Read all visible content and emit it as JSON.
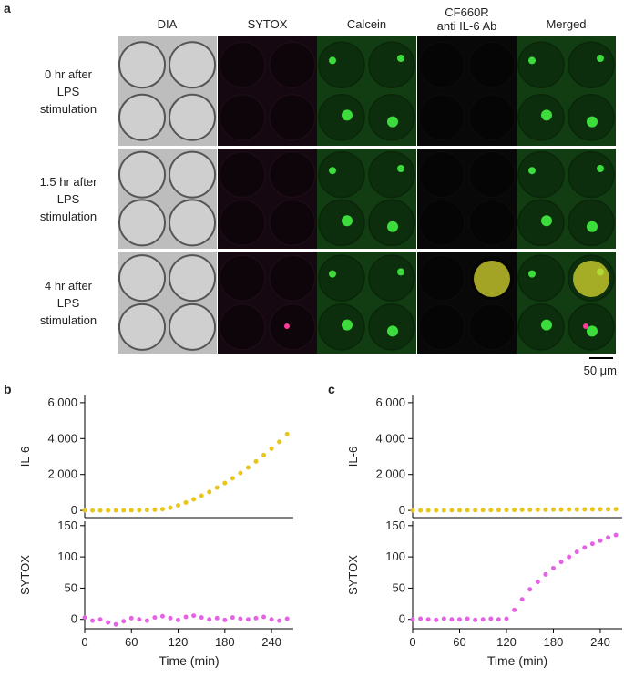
{
  "panels": [
    "a",
    "b",
    "c"
  ],
  "panel_a": {
    "columns": [
      "DIA",
      "SYTOX",
      "Calcein",
      [
        "CF660R",
        "anti IL-6 Ab"
      ],
      "Merged"
    ],
    "rows": [
      [
        "0 hr after",
        "LPS",
        "stimulation"
      ],
      [
        "1.5 hr after",
        "LPS",
        "stimulation"
      ],
      [
        "4 hr after",
        "LPS",
        "stimulation"
      ]
    ],
    "scale_bar": "50 μm"
  },
  "chart_data": [
    {
      "type": "scatter",
      "ylabel": "IL-6",
      "color": "#e8c61c",
      "x": [
        0,
        10,
        20,
        30,
        40,
        50,
        60,
        70,
        80,
        90,
        100,
        110,
        120,
        130,
        140,
        150,
        160,
        170,
        180,
        190,
        200,
        210,
        220,
        230,
        240,
        250,
        260
      ],
      "values": [
        0,
        0,
        0,
        0,
        5,
        5,
        10,
        15,
        25,
        40,
        70,
        150,
        280,
        440,
        620,
        820,
        1030,
        1270,
        1520,
        1790,
        2080,
        2390,
        2730,
        3080,
        3440,
        3820,
        4250
      ],
      "xlim": [
        0,
        268
      ],
      "ylim": [
        -400,
        6400
      ],
      "yticks": [
        0,
        {
          "value": 2000,
          "label": "2,000"
        },
        {
          "value": 4000,
          "label": "4,000"
        },
        {
          "value": 6000,
          "label": "6,000"
        }
      ]
    },
    {
      "type": "scatter",
      "ylabel": "SYTOX",
      "xlabel": "Time (min)",
      "color": "#e463e4",
      "x": [
        0,
        10,
        20,
        30,
        40,
        50,
        60,
        70,
        80,
        90,
        100,
        110,
        120,
        130,
        140,
        150,
        160,
        170,
        180,
        190,
        200,
        210,
        220,
        230,
        240,
        250,
        260
      ],
      "values": [
        3,
        -2,
        0,
        -5,
        -8,
        -3,
        2,
        0,
        -2,
        3,
        5,
        2,
        -1,
        4,
        6,
        3,
        0,
        2,
        -1,
        3,
        1,
        0,
        2,
        4,
        0,
        -2,
        1
      ],
      "xlim": [
        0,
        268
      ],
      "ylim": [
        -15,
        157
      ],
      "xticks": [
        0,
        60,
        120,
        180,
        240
      ],
      "yticks": [
        0,
        50,
        100,
        150
      ]
    },
    {
      "type": "scatter",
      "ylabel": "IL-6",
      "color": "#e8c61c",
      "x": [
        0,
        10,
        20,
        30,
        40,
        50,
        60,
        70,
        80,
        90,
        100,
        110,
        120,
        130,
        140,
        150,
        160,
        170,
        180,
        190,
        200,
        210,
        220,
        230,
        240,
        250,
        260
      ],
      "values": [
        0,
        2,
        5,
        5,
        8,
        10,
        12,
        14,
        16,
        18,
        20,
        22,
        25,
        28,
        30,
        33,
        36,
        40,
        43,
        46,
        50,
        53,
        56,
        60,
        63,
        66,
        70
      ],
      "xlim": [
        0,
        268
      ],
      "ylim": [
        -400,
        6400
      ],
      "yticks": [
        0,
        {
          "value": 2000,
          "label": "2,000"
        },
        {
          "value": 4000,
          "label": "4,000"
        },
        {
          "value": 6000,
          "label": "6,000"
        }
      ]
    },
    {
      "type": "scatter",
      "ylabel": "SYTOX",
      "xlabel": "Time (min)",
      "color": "#e463e4",
      "x": [
        0,
        10,
        20,
        30,
        40,
        50,
        60,
        70,
        80,
        90,
        100,
        110,
        120,
        130,
        140,
        150,
        160,
        170,
        180,
        190,
        200,
        210,
        220,
        230,
        240,
        250,
        260
      ],
      "values": [
        0,
        1,
        0,
        -1,
        1,
        0,
        0,
        1,
        -1,
        0,
        1,
        0,
        1,
        15,
        32,
        48,
        60,
        72,
        82,
        92,
        100,
        108,
        115,
        121,
        126,
        131,
        135
      ],
      "xlim": [
        0,
        268
      ],
      "ylim": [
        -15,
        157
      ],
      "xticks": [
        0,
        60,
        120,
        180,
        240
      ],
      "yticks": [
        0,
        50,
        100,
        150
      ]
    }
  ]
}
